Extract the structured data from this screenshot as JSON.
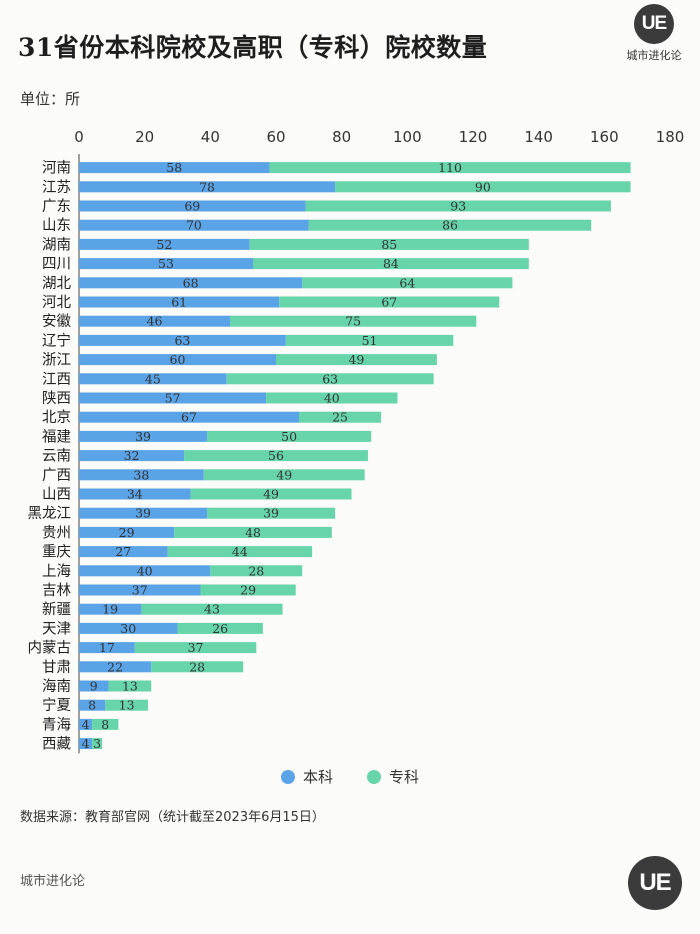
{
  "header": {
    "title": "31省份本科院校及高职（专科）院校数量",
    "unit": "单位：所"
  },
  "logo": {
    "mark": "UE",
    "name": "城市进化论"
  },
  "colors": {
    "benke": "#5aa3e6",
    "zhuanke": "#67d5a9"
  },
  "chart_data": {
    "type": "bar",
    "orientation": "horizontal",
    "stacked": true,
    "categories": [
      "河南",
      "江苏",
      "广东",
      "山东",
      "湖南",
      "四川",
      "湖北",
      "河北",
      "安徽",
      "辽宁",
      "浙江",
      "江西",
      "陕西",
      "北京",
      "福建",
      "云南",
      "广西",
      "山西",
      "黑龙江",
      "贵州",
      "重庆",
      "上海",
      "吉林",
      "新疆",
      "天津",
      "内蒙古",
      "甘肃",
      "海南",
      "宁夏",
      "青海",
      "西藏"
    ],
    "series": [
      {
        "name": "本科",
        "values": [
          58,
          78,
          69,
          70,
          52,
          53,
          68,
          61,
          46,
          63,
          60,
          45,
          57,
          67,
          39,
          32,
          38,
          34,
          39,
          29,
          27,
          40,
          37,
          19,
          30,
          17,
          22,
          9,
          8,
          4,
          4
        ]
      },
      {
        "name": "专科",
        "values": [
          110,
          90,
          93,
          86,
          85,
          84,
          64,
          67,
          75,
          51,
          49,
          63,
          40,
          25,
          50,
          56,
          49,
          49,
          39,
          48,
          44,
          28,
          29,
          43,
          26,
          37,
          28,
          13,
          13,
          8,
          3
        ]
      }
    ],
    "xlim": [
      0,
      180
    ],
    "xticks": [
      0,
      20,
      40,
      60,
      80,
      100,
      120,
      140,
      160,
      180
    ],
    "legend_position": "bottom-center"
  },
  "footer": {
    "source": "数据来源：教育部官网（统计截至2023年6月15日）",
    "brand": "城市进化论",
    "mark": "UE"
  }
}
